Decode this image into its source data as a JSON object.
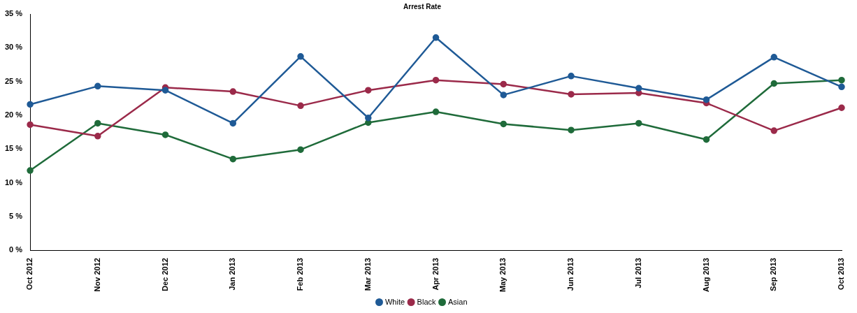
{
  "chart_data": {
    "type": "line",
    "title": "Arrest Rate",
    "categories": [
      "Oct 2012",
      "Nov 2012",
      "Dec 2012",
      "Jan 2013",
      "Feb 2013",
      "Mar 2013",
      "Apr 2013",
      "May 2013",
      "Jun 2013",
      "Jul 2013",
      "Aug 2013",
      "Sep 2013",
      "Oct 2013"
    ],
    "series": [
      {
        "name": "White",
        "color": "#1f5a96",
        "values": [
          21.6,
          24.3,
          23.7,
          18.8,
          28.7,
          19.6,
          31.5,
          23.0,
          25.8,
          24.0,
          22.3,
          28.6,
          24.2
        ]
      },
      {
        "name": "Black",
        "color": "#9b2a4a",
        "values": [
          18.6,
          16.9,
          24.1,
          23.5,
          21.4,
          23.7,
          25.2,
          24.6,
          23.1,
          23.3,
          21.8,
          17.7,
          21.1
        ]
      },
      {
        "name": "Asian",
        "color": "#1f6b3a",
        "values": [
          11.8,
          18.8,
          17.1,
          13.5,
          14.9,
          18.9,
          20.5,
          18.7,
          17.8,
          18.8,
          16.4,
          24.7,
          25.2
        ]
      }
    ],
    "ylim": [
      0,
      35
    ],
    "yticks": [
      {
        "value": 0,
        "label": "0 %"
      },
      {
        "value": 5,
        "label": "5 %"
      },
      {
        "value": 10,
        "label": "10 %"
      },
      {
        "value": 15,
        "label": "15 %"
      },
      {
        "value": 20,
        "label": "20 %"
      },
      {
        "value": 25,
        "label": "25 %"
      },
      {
        "value": 30,
        "label": "30 %"
      },
      {
        "value": 35,
        "label": "35 %"
      }
    ],
    "grid": false,
    "legend": "bottom",
    "marker": "circle",
    "line_style": "solid"
  }
}
